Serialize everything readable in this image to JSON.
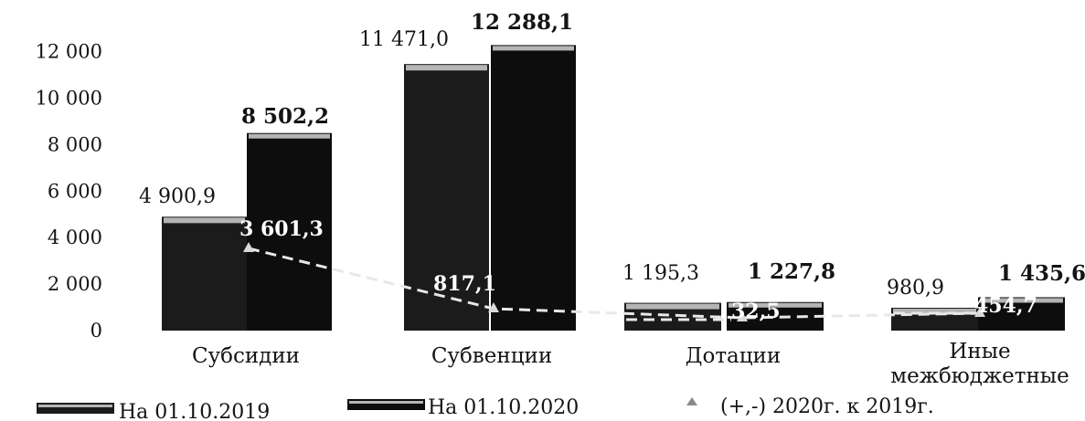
{
  "chart_data": {
    "type": "bar",
    "categories": [
      "Субсидии",
      "Субвенции",
      "Дотации",
      "Иные межбюджетные"
    ],
    "series": [
      {
        "name": "На 01.10.2019",
        "values": [
          4900.9,
          11471.0,
          1195.3,
          980.9
        ],
        "labels": [
          "4 900,9",
          "11 471,0",
          "1 195,3",
          "980,9"
        ]
      },
      {
        "name": "На 01.10.2020",
        "values": [
          8502.2,
          12288.1,
          1227.8,
          1435.6
        ],
        "labels": [
          "8 502,2",
          "12 288,1",
          "1 227,8",
          "1 435,6"
        ]
      },
      {
        "name": "(+,-) 2020г. к 2019г.",
        "type": "line",
        "values": [
          3601.3,
          817.1,
          32.5,
          454.7
        ],
        "labels": [
          "3 601,3",
          "817,1",
          "32,5",
          "454,7"
        ]
      }
    ],
    "yticks": [
      0,
      2000,
      4000,
      6000,
      8000,
      10000,
      12000
    ],
    "ytick_labels": [
      "0",
      "2 000",
      "4 000",
      "6 000",
      "8 000",
      "10 000",
      "12 000"
    ],
    "ylim": [
      0,
      12500
    ],
    "title": "",
    "xlabel": "",
    "ylabel": "",
    "legend": "bottom",
    "grid": false,
    "colors": {
      "bar_2019": "#1b1b1b",
      "bar_2020": "#0d0d0d",
      "band": "#b5b5b5",
      "diff_line": "#e8e8e8"
    }
  }
}
